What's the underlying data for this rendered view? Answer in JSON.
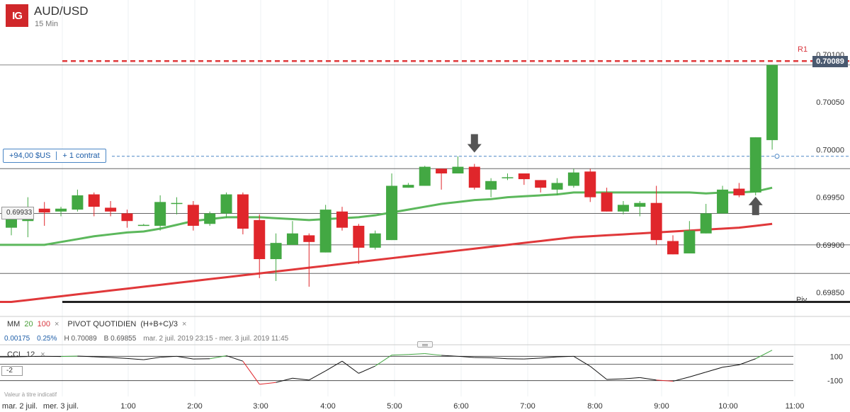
{
  "header": {
    "logo": "IG",
    "symbol": "AUD/USD",
    "timeframe": "15 Min"
  },
  "position": {
    "pnl": "+94,00 $US",
    "contracts": "+ 1 contrat",
    "entry_price": 0.69993
  },
  "left_tag": "0.69933",
  "minus_tag": "-2",
  "disclaimer": "Valeur à titre indicatif",
  "last_price_tag": "0.70089",
  "pivot_labels": {
    "r1": "R1",
    "piv": "Piv"
  },
  "indicators": {
    "ma": {
      "label": "MM",
      "p1": "20",
      "p2": "100",
      "close": "×"
    },
    "pivot": {
      "label": "PIVOT QUOTIDIEN",
      "formula": "(H+B+C)/3",
      "close": "×"
    },
    "stats": {
      "change": "0.00175",
      "change_pct": "0.25%",
      "high": "H 0.70089",
      "low": "B 0.69855",
      "range": "mar. 2 juil. 2019 23:15 - mer. 3 juil. 2019 11:45"
    },
    "cci": {
      "label": "CCI",
      "period": "12",
      "close": "×"
    }
  },
  "colors": {
    "up": "#43a843",
    "down": "#e0262b",
    "ma20": "#5cb85c",
    "ma100": "#e0383a",
    "r1": "#e0383a",
    "pivot": "#222222",
    "position": "#4a86c5"
  },
  "chart_data": {
    "type": "candlestick",
    "instrument": "AUD/USD",
    "y_ticks": [
      "0.70100",
      "0.70050",
      "0.70000",
      "0.69950",
      "0.69900",
      "0.69850"
    ],
    "x_ticks": [
      "mar. 2 juil.",
      "mer. 3 juil.",
      "1:00",
      "2:00",
      "3:00",
      "4:00",
      "5:00",
      "6:00",
      "7:00",
      "8:00",
      "9:00",
      "10:00",
      "11:00"
    ],
    "ylim": [
      0.6983,
      0.7012
    ],
    "r1": 0.70093,
    "pivot": 0.6984,
    "last": 0.70089,
    "horizontal_levels": [
      0.6998,
      0.69933,
      0.699,
      0.6987
    ],
    "candles": [
      {
        "o": 0.69918,
        "h": 0.69932,
        "l": 0.6991,
        "c": 0.6993
      },
      {
        "o": 0.69925,
        "h": 0.6995,
        "l": 0.69908,
        "c": 0.69935
      },
      {
        "o": 0.69938,
        "h": 0.69945,
        "l": 0.6992,
        "c": 0.69934
      },
      {
        "o": 0.69935,
        "h": 0.6994,
        "l": 0.6993,
        "c": 0.69938
      },
      {
        "o": 0.69937,
        "h": 0.69958,
        "l": 0.69935,
        "c": 0.69952
      },
      {
        "o": 0.69953,
        "h": 0.69955,
        "l": 0.6993,
        "c": 0.6994
      },
      {
        "o": 0.69939,
        "h": 0.69946,
        "l": 0.6993,
        "c": 0.69935
      },
      {
        "o": 0.69933,
        "h": 0.69937,
        "l": 0.69918,
        "c": 0.69925
      },
      {
        "o": 0.6992,
        "h": 0.69922,
        "l": 0.6992,
        "c": 0.69921
      },
      {
        "o": 0.6992,
        "h": 0.69952,
        "l": 0.69915,
        "c": 0.69945
      },
      {
        "o": 0.69944,
        "h": 0.6995,
        "l": 0.69932,
        "c": 0.69944
      },
      {
        "o": 0.69942,
        "h": 0.69946,
        "l": 0.69915,
        "c": 0.6992
      },
      {
        "o": 0.69922,
        "h": 0.69935,
        "l": 0.6992,
        "c": 0.69933
      },
      {
        "o": 0.69933,
        "h": 0.69955,
        "l": 0.69928,
        "c": 0.69953
      },
      {
        "o": 0.69953,
        "h": 0.69955,
        "l": 0.69911,
        "c": 0.69917
      },
      {
        "o": 0.69926,
        "h": 0.69932,
        "l": 0.69865,
        "c": 0.69885
      },
      {
        "o": 0.69885,
        "h": 0.69912,
        "l": 0.69862,
        "c": 0.69902
      },
      {
        "o": 0.699,
        "h": 0.69925,
        "l": 0.699,
        "c": 0.69912
      },
      {
        "o": 0.6991,
        "h": 0.69912,
        "l": 0.69856,
        "c": 0.69903
      },
      {
        "o": 0.69892,
        "h": 0.69942,
        "l": 0.69892,
        "c": 0.69937
      },
      {
        "o": 0.69935,
        "h": 0.6994,
        "l": 0.69915,
        "c": 0.69918
      },
      {
        "o": 0.6992,
        "h": 0.69922,
        "l": 0.6988,
        "c": 0.69897
      },
      {
        "o": 0.69897,
        "h": 0.69915,
        "l": 0.69895,
        "c": 0.69912
      },
      {
        "o": 0.69905,
        "h": 0.69975,
        "l": 0.69905,
        "c": 0.69962
      },
      {
        "o": 0.6996,
        "h": 0.69965,
        "l": 0.6996,
        "c": 0.69963
      },
      {
        "o": 0.69962,
        "h": 0.69983,
        "l": 0.69962,
        "c": 0.69982
      },
      {
        "o": 0.6998,
        "h": 0.6998,
        "l": 0.69958,
        "c": 0.69975
      },
      {
        "o": 0.69975,
        "h": 0.69993,
        "l": 0.69975,
        "c": 0.69982
      },
      {
        "o": 0.69982,
        "h": 0.69985,
        "l": 0.69958,
        "c": 0.6996
      },
      {
        "o": 0.69958,
        "h": 0.6997,
        "l": 0.6995,
        "c": 0.69967
      },
      {
        "o": 0.6997,
        "h": 0.69975,
        "l": 0.69968,
        "c": 0.69971
      },
      {
        "o": 0.69975,
        "h": 0.69975,
        "l": 0.69963,
        "c": 0.69969
      },
      {
        "o": 0.69968,
        "h": 0.69968,
        "l": 0.69955,
        "c": 0.6996
      },
      {
        "o": 0.69958,
        "h": 0.6997,
        "l": 0.69952,
        "c": 0.69965
      },
      {
        "o": 0.69962,
        "h": 0.6998,
        "l": 0.6996,
        "c": 0.69976
      },
      {
        "o": 0.69977,
        "h": 0.6998,
        "l": 0.69945,
        "c": 0.6995
      },
      {
        "o": 0.69955,
        "h": 0.6996,
        "l": 0.69935,
        "c": 0.69935
      },
      {
        "o": 0.69935,
        "h": 0.69946,
        "l": 0.69932,
        "c": 0.69942
      },
      {
        "o": 0.6994,
        "h": 0.69946,
        "l": 0.6993,
        "c": 0.69944
      },
      {
        "o": 0.69944,
        "h": 0.69962,
        "l": 0.699,
        "c": 0.69905
      },
      {
        "o": 0.69904,
        "h": 0.6991,
        "l": 0.6989,
        "c": 0.6989
      },
      {
        "o": 0.69891,
        "h": 0.69925,
        "l": 0.69891,
        "c": 0.69915
      },
      {
        "o": 0.69912,
        "h": 0.69943,
        "l": 0.69912,
        "c": 0.69933
      },
      {
        "o": 0.69933,
        "h": 0.69962,
        "l": 0.69933,
        "c": 0.69958
      },
      {
        "o": 0.69959,
        "h": 0.69965,
        "l": 0.6995,
        "c": 0.69952
      },
      {
        "o": 0.69955,
        "h": 0.70013,
        "l": 0.69952,
        "c": 0.70013
      },
      {
        "o": 0.7001,
        "h": 0.70089,
        "l": 0.7,
        "c": 0.70089
      }
    ],
    "ma20": [
      0.699,
      0.699,
      0.699,
      0.69903,
      0.69906,
      0.69909,
      0.69911,
      0.69913,
      0.69914,
      0.69917,
      0.69921,
      0.69925,
      0.69927,
      0.69929,
      0.69929,
      0.69929,
      0.69928,
      0.69927,
      0.69926,
      0.69927,
      0.69928,
      0.69929,
      0.69931,
      0.69934,
      0.69937,
      0.6994,
      0.69943,
      0.69945,
      0.69947,
      0.69948,
      0.6995,
      0.69951,
      0.69952,
      0.69953,
      0.69955,
      0.69955,
      0.69955,
      0.69955,
      0.69955,
      0.69955,
      0.69955,
      0.69955,
      0.69954,
      0.69955,
      0.69955,
      0.69956,
      0.6996
    ],
    "ma100": [
      0.6984,
      0.69842,
      0.69844,
      0.69846,
      0.69848,
      0.6985,
      0.69852,
      0.69854,
      0.69856,
      0.69858,
      0.6986,
      0.69862,
      0.69864,
      0.69866,
      0.69868,
      0.6987,
      0.69872,
      0.69874,
      0.69876,
      0.69878,
      0.6988,
      0.69882,
      0.69884,
      0.69886,
      0.69888,
      0.6989,
      0.69892,
      0.69894,
      0.69896,
      0.69898,
      0.699,
      0.69902,
      0.69904,
      0.69906,
      0.69908,
      0.69909,
      0.6991,
      0.69911,
      0.69912,
      0.69913,
      0.69914,
      0.69915,
      0.69916,
      0.69917,
      0.69918,
      0.6992,
      0.69922
    ],
    "cci": [
      95,
      98,
      100,
      98,
      102,
      96,
      90,
      82,
      72,
      92,
      100,
      78,
      80,
      105,
      60,
      -130,
      -115,
      -80,
      -95,
      -20,
      60,
      -40,
      20,
      110,
      115,
      122,
      108,
      100,
      90,
      88,
      80,
      78,
      85,
      95,
      100,
      18,
      -90,
      -85,
      -75,
      -95,
      -105,
      -70,
      -30,
      10,
      30,
      80,
      150
    ],
    "cci_levels": [
      "100",
      "-100"
    ],
    "arrows": [
      {
        "dir": "down",
        "candle": 28
      },
      {
        "dir": "up",
        "candle": 45
      }
    ]
  }
}
